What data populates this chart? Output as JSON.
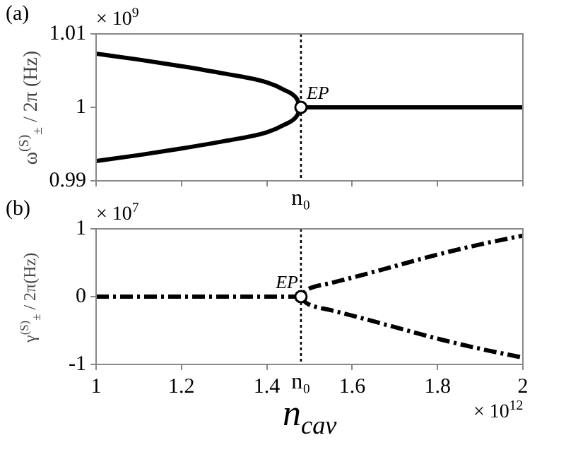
{
  "chart_data": [
    {
      "type": "line",
      "title": "(a)",
      "ylabel": "ω$^{(S)}$$_{±}$ / 2π (Hz)",
      "annotations": [
        "× 10$^{9}$",
        {
          "text": "EP",
          "x": 1.48,
          "y": 1
        }
      ],
      "xlim": [
        1,
        2
      ],
      "xticks": [
        {
          "value": 1,
          "label": null
        },
        {
          "value": 1.2,
          "label": null
        },
        {
          "value": 1.4,
          "label": null
        },
        {
          "value": 1.6,
          "label": null
        },
        {
          "value": 1.8,
          "label": null
        },
        {
          "value": 2,
          "label": null
        }
      ],
      "ylim": [
        0.99,
        1.01
      ],
      "yticks": [
        0.99,
        1,
        1.01
      ],
      "tick_labels": "y",
      "ref_lines": [
        {
          "axis": "x",
          "value": 1.48,
          "label": "n₀",
          "line_style": "dotted"
        }
      ],
      "series": [
        {
          "type": "line",
          "color": "#000000",
          "line_style": "solid",
          "x": [
            1,
            1.1,
            1.2,
            1.3,
            1.4,
            1.44,
            1.47,
            1.48,
            2
          ],
          "values": [
            1.0073,
            1.0065,
            1.0056,
            1.0046,
            1.0034,
            1.0024,
            1.0012,
            1,
            1
          ]
        },
        {
          "type": "line",
          "color": "#000000",
          "line_style": "solid",
          "x": [
            1,
            1.1,
            1.2,
            1.3,
            1.4,
            1.44,
            1.47,
            1.48
          ],
          "values": [
            0.9927,
            0.9935,
            0.9944,
            0.9954,
            0.9966,
            0.9976,
            0.9988,
            1
          ]
        },
        {
          "type": "scatter",
          "color": "#000000",
          "marker": "circle",
          "x": [
            1.48
          ],
          "values": [
            1
          ]
        }
      ]
    },
    {
      "type": "line",
      "title": "(b)",
      "ylabel": "γ$^{(S)}$$_{±}$ / 2π(Hz)",
      "xlabel": "n$_{cav}$",
      "annotations": [
        "× 10$^{7}$",
        "× 10$^{12}$",
        {
          "text": "EP",
          "x": 1.48,
          "y": 0
        }
      ],
      "xlim": [
        1,
        2
      ],
      "xticks": [
        1,
        1.2,
        1.4,
        1.6,
        1.8,
        2
      ],
      "ylim": [
        -1,
        1
      ],
      "yticks": [
        -1,
        0,
        1
      ],
      "ref_lines": [
        {
          "axis": "x",
          "value": 1.48,
          "label": "n₀",
          "line_style": "dotted"
        }
      ],
      "series": [
        {
          "type": "line",
          "color": "#000000",
          "line_style": "dashed",
          "x": [
            1,
            1.48,
            1.49,
            1.5,
            1.55,
            1.6,
            1.7,
            1.8,
            1.9,
            2
          ],
          "values": [
            0,
            0,
            0.08,
            0.12,
            0.2,
            0.28,
            0.45,
            0.62,
            0.77,
            0.9
          ]
        },
        {
          "type": "line",
          "color": "#000000",
          "line_style": "dashed",
          "x": [
            1.48,
            1.49,
            1.5,
            1.55,
            1.6,
            1.7,
            1.8,
            1.9,
            2
          ],
          "values": [
            0,
            -0.08,
            -0.12,
            -0.2,
            -0.28,
            -0.45,
            -0.62,
            -0.77,
            -0.9
          ]
        },
        {
          "type": "scatter",
          "color": "#000000",
          "marker": "circle",
          "x": [
            1.48
          ],
          "values": [
            0
          ]
        }
      ]
    }
  ]
}
